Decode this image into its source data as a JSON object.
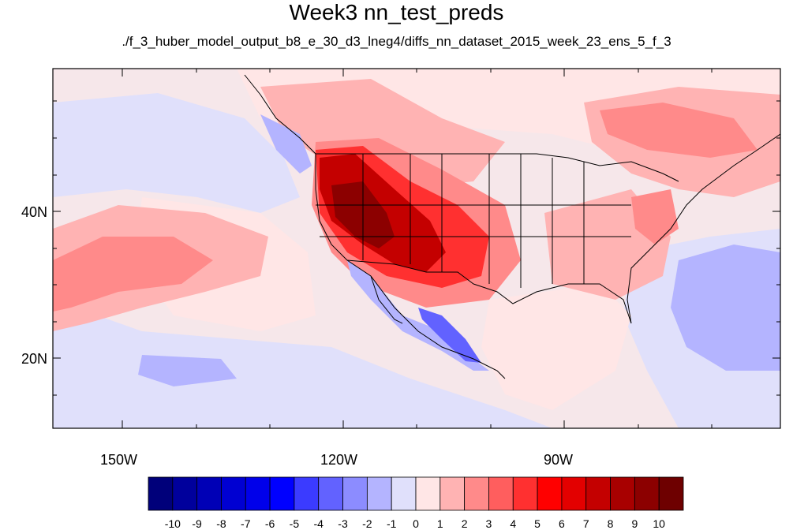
{
  "title": "Week3 nn_test_preds",
  "subtitle": "./f_3_huber_model_output_b8_e_30_d3_lneg4/diffs_nn_dataset_2015_week_23_ens_5_f_3",
  "axes": {
    "lat_labels": [
      "40N",
      "20N"
    ],
    "lon_labels": [
      "150W",
      "120W",
      "90W"
    ]
  },
  "colorbar": {
    "labels": [
      "-10",
      "-9",
      "-8",
      "-7",
      "-6",
      "-5",
      "-4",
      "-3",
      "-2",
      "-1",
      "0",
      "1",
      "2",
      "3",
      "4",
      "5",
      "6",
      "7",
      "8",
      "9",
      "10"
    ],
    "colors": [
      "#00007a",
      "#00009c",
      "#0000b6",
      "#0000d2",
      "#0000ea",
      "#0000ff",
      "#3b3bff",
      "#6262ff",
      "#8c8cff",
      "#b4b4ff",
      "#e0e0fb",
      "#ffe6e6",
      "#ffb3b3",
      "#ff8a8a",
      "#ff5e5e",
      "#ff3030",
      "#ff0000",
      "#e30000",
      "#c40000",
      "#a80000",
      "#8c0000",
      "#6e0000"
    ]
  },
  "colors": {
    "background": "#ffffff",
    "ocean_base": "#f6e7ea",
    "light_blue": "#e0e0fb",
    "mid_blue": "#b4b4ff",
    "deep_blue": "#6262ff",
    "pink": "#ffe6e6",
    "light_red": "#ffb3b3",
    "mid_red": "#ff8a8a",
    "red": "#ff3030",
    "dark_red": "#c40000",
    "darkest_red": "#8c0000"
  }
}
